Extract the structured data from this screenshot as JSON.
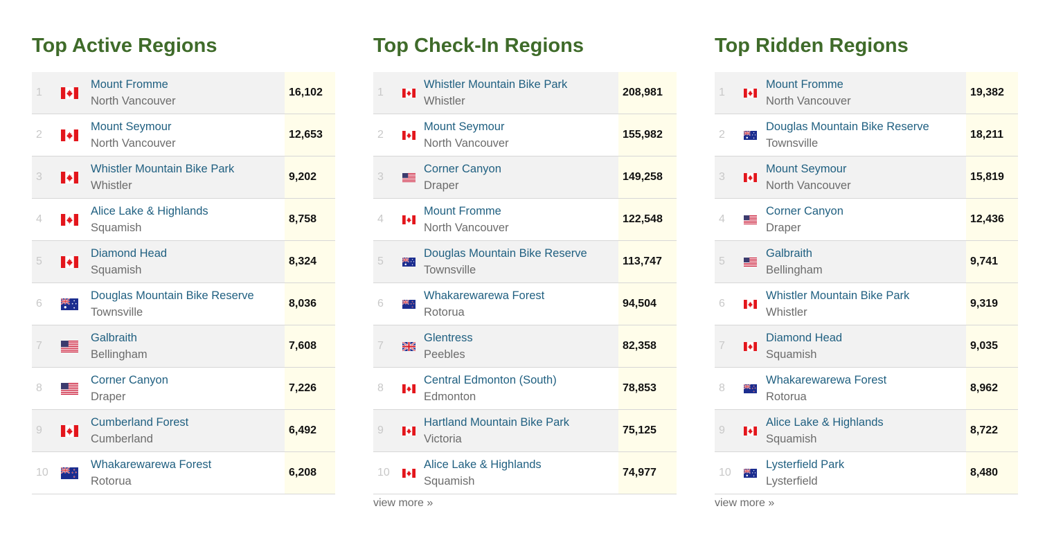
{
  "panels": [
    {
      "title": "Top Active Regions",
      "view_more": "",
      "rows": [
        {
          "rank": "1",
          "country": "CA",
          "name": "Mount Fromme",
          "city": "North Vancouver",
          "value": "16,102"
        },
        {
          "rank": "2",
          "country": "CA",
          "name": "Mount Seymour",
          "city": "North Vancouver",
          "value": "12,653"
        },
        {
          "rank": "3",
          "country": "CA",
          "name": "Whistler Mountain Bike Park",
          "city": "Whistler",
          "value": "9,202"
        },
        {
          "rank": "4",
          "country": "CA",
          "name": "Alice Lake & Highlands",
          "city": "Squamish",
          "value": "8,758"
        },
        {
          "rank": "5",
          "country": "CA",
          "name": "Diamond Head",
          "city": "Squamish",
          "value": "8,324"
        },
        {
          "rank": "6",
          "country": "AU",
          "name": "Douglas Mountain Bike Reserve",
          "city": "Townsville",
          "value": "8,036"
        },
        {
          "rank": "7",
          "country": "US",
          "name": "Galbraith",
          "city": "Bellingham",
          "value": "7,608"
        },
        {
          "rank": "8",
          "country": "US",
          "name": "Corner Canyon",
          "city": "Draper",
          "value": "7,226"
        },
        {
          "rank": "9",
          "country": "CA",
          "name": "Cumberland Forest",
          "city": "Cumberland",
          "value": "6,492"
        },
        {
          "rank": "10",
          "country": "NZ",
          "name": "Whakarewarewa Forest",
          "city": "Rotorua",
          "value": "6,208"
        }
      ]
    },
    {
      "title": "Top Check-In Regions",
      "view_more": "view more »",
      "rows": [
        {
          "rank": "1",
          "country": "CA",
          "name": "Whistler Mountain Bike Park",
          "city": "Whistler",
          "value": "208,981"
        },
        {
          "rank": "2",
          "country": "CA",
          "name": "Mount Seymour",
          "city": "North Vancouver",
          "value": "155,982"
        },
        {
          "rank": "3",
          "country": "US",
          "name": "Corner Canyon",
          "city": "Draper",
          "value": "149,258"
        },
        {
          "rank": "4",
          "country": "CA",
          "name": "Mount Fromme",
          "city": "North Vancouver",
          "value": "122,548"
        },
        {
          "rank": "5",
          "country": "AU",
          "name": "Douglas Mountain Bike Reserve",
          "city": "Townsville",
          "value": "113,747"
        },
        {
          "rank": "6",
          "country": "NZ",
          "name": "Whakarewarewa Forest",
          "city": "Rotorua",
          "value": "94,504"
        },
        {
          "rank": "7",
          "country": "GB",
          "name": "Glentress",
          "city": "Peebles",
          "value": "82,358"
        },
        {
          "rank": "8",
          "country": "CA",
          "name": "Central Edmonton (South)",
          "city": "Edmonton",
          "value": "78,853"
        },
        {
          "rank": "9",
          "country": "CA",
          "name": "Hartland Mountain Bike Park",
          "city": "Victoria",
          "value": "75,125"
        },
        {
          "rank": "10",
          "country": "CA",
          "name": "Alice Lake & Highlands",
          "city": "Squamish",
          "value": "74,977"
        }
      ]
    },
    {
      "title": "Top Ridden Regions",
      "view_more": "view more »",
      "rows": [
        {
          "rank": "1",
          "country": "CA",
          "name": "Mount Fromme",
          "city": "North Vancouver",
          "value": "19,382"
        },
        {
          "rank": "2",
          "country": "AU",
          "name": "Douglas Mountain Bike Reserve",
          "city": "Townsville",
          "value": "18,211"
        },
        {
          "rank": "3",
          "country": "CA",
          "name": "Mount Seymour",
          "city": "North Vancouver",
          "value": "15,819"
        },
        {
          "rank": "4",
          "country": "US",
          "name": "Corner Canyon",
          "city": "Draper",
          "value": "12,436"
        },
        {
          "rank": "5",
          "country": "US",
          "name": "Galbraith",
          "city": "Bellingham",
          "value": "9,741"
        },
        {
          "rank": "6",
          "country": "CA",
          "name": "Whistler Mountain Bike Park",
          "city": "Whistler",
          "value": "9,319"
        },
        {
          "rank": "7",
          "country": "CA",
          "name": "Diamond Head",
          "city": "Squamish",
          "value": "9,035"
        },
        {
          "rank": "8",
          "country": "NZ",
          "name": "Whakarewarewa Forest",
          "city": "Rotorua",
          "value": "8,962"
        },
        {
          "rank": "9",
          "country": "CA",
          "name": "Alice Lake & Highlands",
          "city": "Squamish",
          "value": "8,722"
        },
        {
          "rank": "10",
          "country": "AU",
          "name": "Lysterfield Park",
          "city": "Lysterfield",
          "value": "8,480"
        }
      ]
    }
  ],
  "colors": {
    "title": "#3f6b2a",
    "link": "#1f5f80",
    "value_bg": "#fffdea",
    "row_alt_bg": "#f2f2f2"
  },
  "icons": {
    "CA": "canada-flag-icon",
    "US": "usa-flag-icon",
    "AU": "australia-flag-icon",
    "NZ": "new-zealand-flag-icon",
    "GB": "uk-flag-icon"
  }
}
